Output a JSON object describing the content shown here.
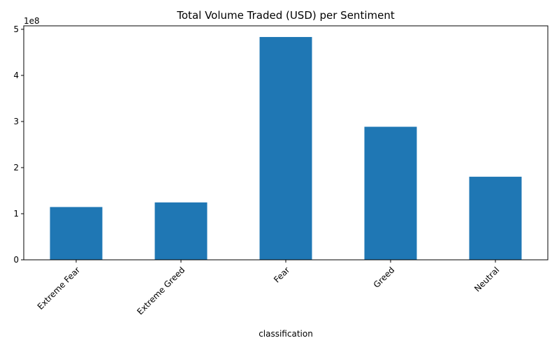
{
  "chart_data": {
    "type": "bar",
    "title": "Total Volume Traded (USD) per Sentiment",
    "xlabel": "classification",
    "ylabel": "",
    "offset_label": "1e8",
    "categories": [
      "Extreme Fear",
      "Extreme Greed",
      "Fear",
      "Greed",
      "Neutral"
    ],
    "values": [
      114500000,
      124500000,
      483300000,
      288600000,
      180200000
    ],
    "yticks": [
      0,
      100000000,
      200000000,
      300000000,
      400000000,
      500000000
    ],
    "ytick_labels": [
      "0",
      "1",
      "2",
      "3",
      "4",
      "5"
    ],
    "ylim": [
      0,
      507500000
    ],
    "xtick_rotation_deg": 45,
    "grid": false,
    "colors": {
      "bar": "#1f77b4",
      "axis": "#000000"
    }
  }
}
